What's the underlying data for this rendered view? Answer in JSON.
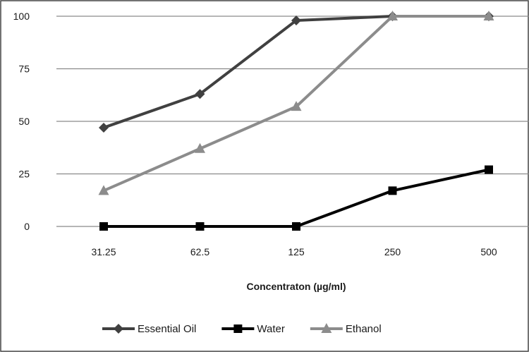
{
  "chart_data": {
    "type": "line",
    "title": "",
    "xlabel": "Concentraton (µg/ml)",
    "ylabel": "",
    "categories": [
      "31.25",
      "62.5",
      "125",
      "250",
      "500"
    ],
    "yticks": [
      "0",
      "25",
      "50",
      "75",
      "100"
    ],
    "ylim": [
      0,
      100
    ],
    "grid": "horizontal",
    "legend": "bottom",
    "series": [
      {
        "name": "Essential Oil",
        "marker": "diamond",
        "color": "#404040",
        "values": [
          47,
          63,
          98,
          100,
          100
        ]
      },
      {
        "name": "Water",
        "marker": "square",
        "color": "#000000",
        "values": [
          0,
          0,
          0,
          17,
          27
        ]
      },
      {
        "name": "Ethanol",
        "marker": "triangle",
        "color": "#8c8c8c",
        "values": [
          17,
          37,
          57,
          100,
          100
        ]
      }
    ]
  }
}
